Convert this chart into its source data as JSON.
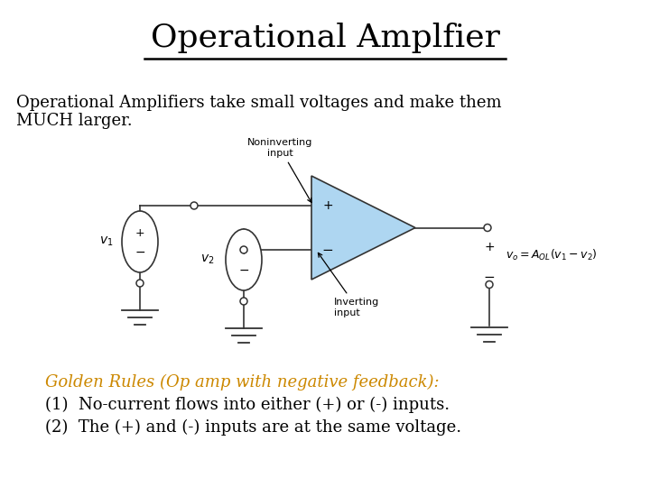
{
  "title": "Operational Amplfier",
  "subtitle_line1": "Operational Amplifiers take small voltages and make them",
  "subtitle_line2": "MUCH larger.",
  "golden_rules_header": "Golden Rules (Op amp with negative feedback):",
  "golden_rule_1": "(1)  No-current flows into either (+) or (-) inputs.",
  "golden_rule_2": "(2)  The (+) and (-) inputs are at the same voltage.",
  "background_color": "#ffffff",
  "title_color": "#000000",
  "text_color": "#000000",
  "golden_color": "#CC8800",
  "title_fontsize": 26,
  "subtitle_fontsize": 13,
  "golden_fontsize": 13,
  "circuit_fontsize": 8,
  "op_amp_color": "#aed6f1",
  "op_amp_edge_color": "#333333",
  "wire_color": "#333333",
  "label_color": "#000000"
}
